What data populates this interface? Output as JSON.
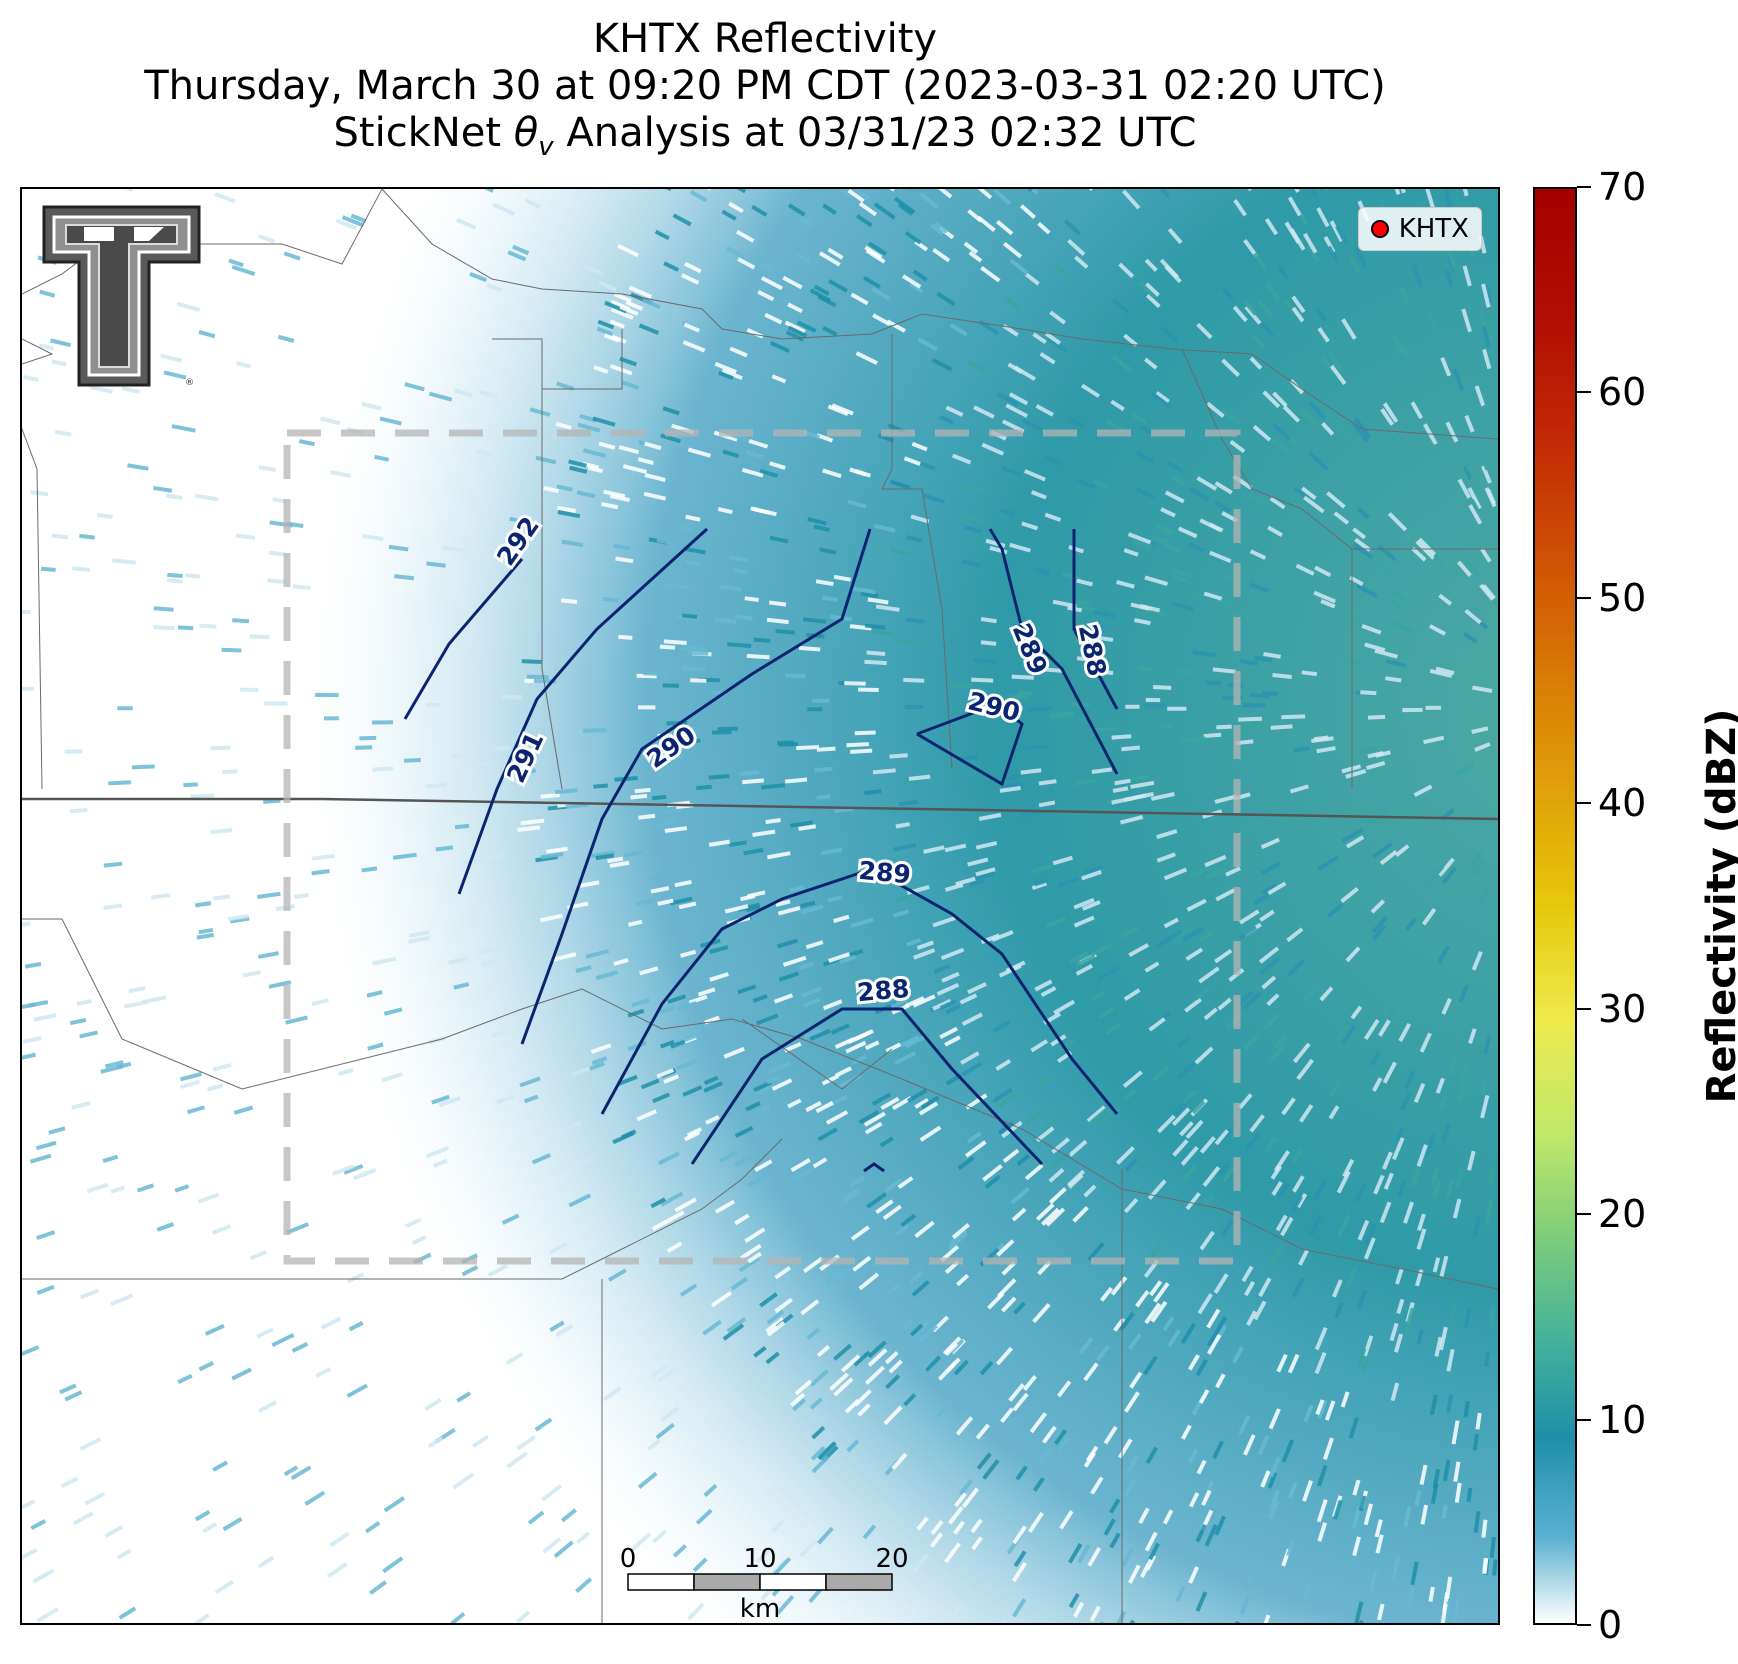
{
  "title": {
    "line1": "KHTX Reflectivity",
    "line2": "Thursday, March 30 at 09:20 PM CDT (2023-03-31 02:20 UTC)",
    "line3_prefix": "StickNet ",
    "line3_theta": "θ",
    "line3_sub": "v",
    "line3_suffix": " Analysis at 03/31/23 02:32 UTC"
  },
  "legend": {
    "label": "KHTX",
    "marker_color": "#ff0000"
  },
  "logo": {
    "name": "texas-tech-double-t-logo",
    "registered": "®"
  },
  "colorbar": {
    "label": "Reflectivity (dBZ)",
    "min": 0,
    "max": 70,
    "ticks": [
      "0",
      "10",
      "20",
      "30",
      "40",
      "50",
      "60",
      "70"
    ],
    "low_color": "#ffffff",
    "mid_color": "#1f8fa8",
    "high_color": "#a30000"
  },
  "scalebar": {
    "labels": [
      "0",
      "10",
      "20"
    ],
    "unit": "km"
  },
  "contours": {
    "color": "#0b2470",
    "labels": [
      "292",
      "291",
      "290",
      "289",
      "288",
      "290",
      "289",
      "288"
    ]
  },
  "map": {
    "radar": "KHTX",
    "analysis_box_color": "#b4b4b4",
    "reflectivity_color": "#1f8fa8"
  }
}
